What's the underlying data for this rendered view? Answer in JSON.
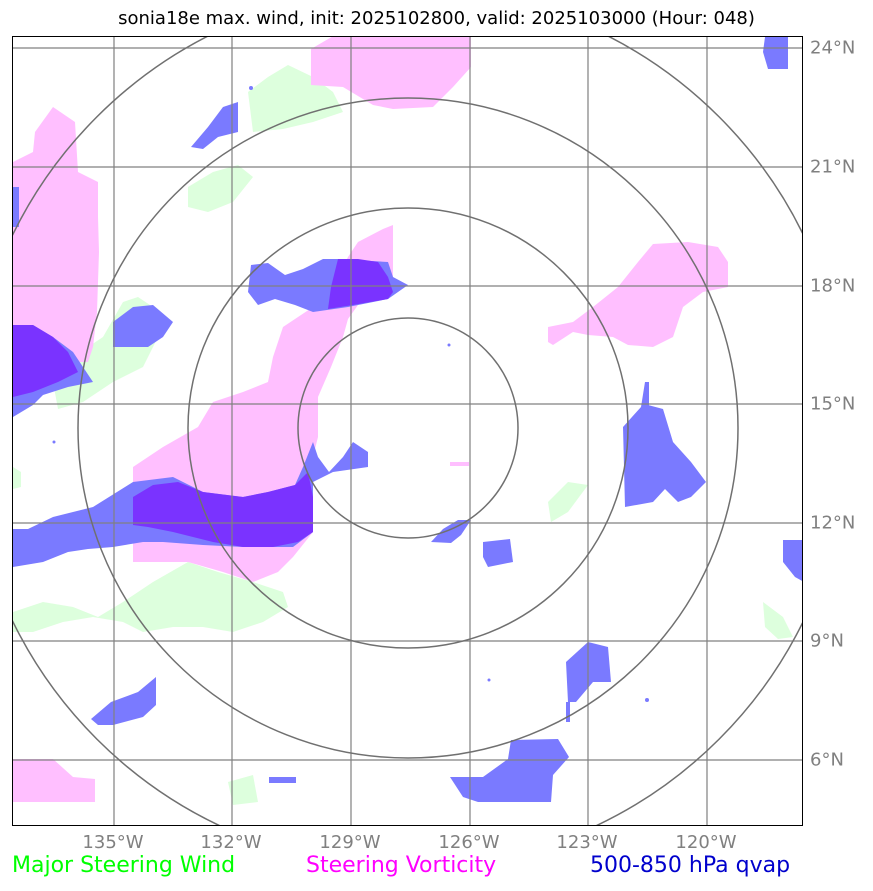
{
  "title": "sonia18e max. wind, init: 2025102800, valid: 2025103000 (Hour: 048)",
  "map": {
    "lat_ticks": [
      "24°N",
      "21°N",
      "18°N",
      "15°N",
      "12°N",
      "9°N",
      "6°N"
    ],
    "lon_ticks": [
      "135°W",
      "132°W",
      "129°W",
      "126°W",
      "123°W",
      "120°W"
    ],
    "grid_color": "#808080",
    "ring_color": "#707070"
  },
  "legend": {
    "major_wind": "Major Steering Wind",
    "vorticity": "Steering Vorticity",
    "qvap": "500-850 hPa qvap"
  },
  "colors": {
    "major_wind": "#00ff00",
    "major_wind_fill": "#ddffdd",
    "vorticity": "#ff00ff",
    "vorticity_fill": "#ffbfff",
    "qvap": "#0000cc",
    "qvap_fill": "#7a7aff",
    "overlap_fill": "#7a33ff"
  }
}
